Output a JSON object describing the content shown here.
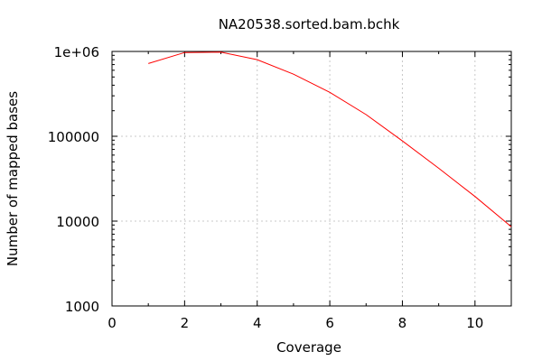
{
  "chart_data": {
    "type": "line",
    "title": "NA20538.sorted.bam.bchk",
    "xlabel": "Coverage",
    "ylabel": "Number of mapped bases",
    "xlim": [
      0,
      11
    ],
    "ylim": [
      1000,
      1000000
    ],
    "yscale": "log",
    "grid": true,
    "x_ticks": [
      0,
      2,
      4,
      6,
      8,
      10
    ],
    "x_tick_labels": [
      "0",
      "2",
      "4",
      "6",
      "8",
      "10"
    ],
    "y_ticks": [
      1000,
      10000,
      100000,
      1000000
    ],
    "y_tick_labels": [
      "1000",
      "10000",
      "100000",
      "1e+06"
    ],
    "line_color": "#ff0000",
    "series": [
      {
        "x": [
          1,
          2,
          3,
          4,
          5,
          6,
          7,
          8,
          9,
          10,
          11
        ],
        "values": [
          720000,
          970000,
          980000,
          800000,
          540000,
          330000,
          180000,
          88000,
          42000,
          19500,
          8600
        ]
      }
    ]
  }
}
